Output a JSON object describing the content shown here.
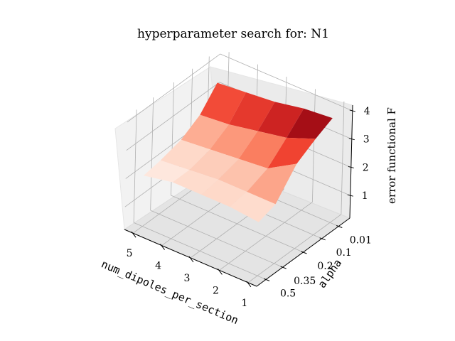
{
  "chart_data": {
    "type": "surface3d",
    "title": "hyperparameter search for: N1",
    "xlabel": "num_dipoles_per_section",
    "ylabel": "alpha",
    "zlabel": "error functional F",
    "x_ticks": [
      "5",
      "4",
      "3",
      "2",
      "1"
    ],
    "y_ticks": [
      "0.01",
      "0.1",
      "0.2",
      "0.35",
      "0.5"
    ],
    "z_ticks": [
      "1",
      "2",
      "3",
      "4"
    ],
    "x": [
      1,
      2,
      3,
      4,
      5
    ],
    "y": [
      0.01,
      0.1,
      0.2,
      0.35,
      0.5
    ],
    "zlim": [
      0.2,
      4.2
    ],
    "grid": true,
    "colormap": "Reds",
    "colormap_stops": [
      "#fff5f0",
      "#fdcab5",
      "#fc8a6a",
      "#f14432",
      "#bc141a",
      "#67000d"
    ],
    "z": [
      [
        3.9,
        3.6,
        3.2,
        2.3,
        2.1
      ],
      [
        3.8,
        3.2,
        2.6,
        2.3,
        2.2
      ],
      [
        3.6,
        3.0,
        2.5,
        2.3,
        2.2
      ],
      [
        3.5,
        2.8,
        2.4,
        2.2,
        2.2
      ],
      [
        3.4,
        2.7,
        2.3,
        2.1,
        2.0
      ]
    ]
  }
}
